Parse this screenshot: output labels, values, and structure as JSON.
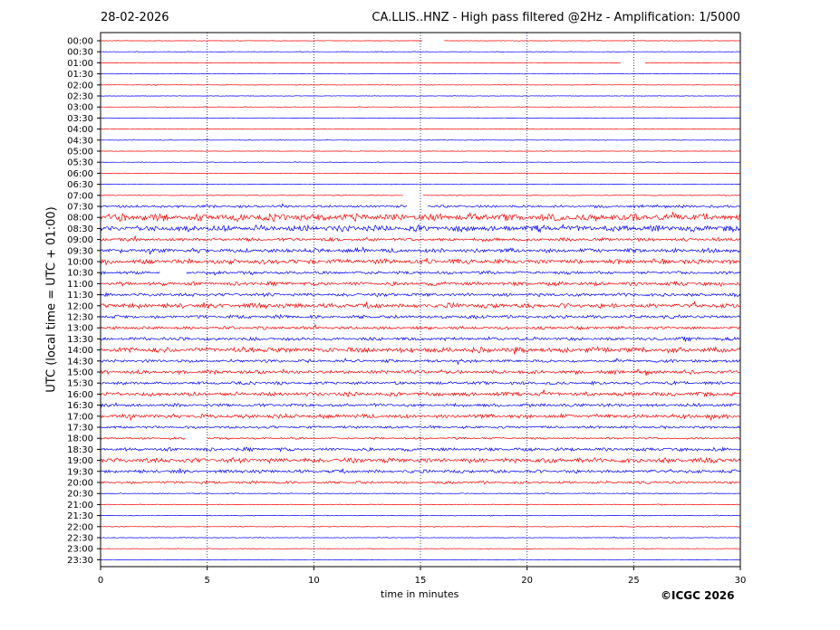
{
  "header": {
    "date": "28-02-2026",
    "title": "CA.LLIS..HNZ - High pass filtered @2Hz - Amplification: 1/5000"
  },
  "footer": {
    "copyright": "©ICGC 2026"
  },
  "chart_data": {
    "type": "line",
    "title": "CA.LLIS..HNZ - High pass filtered @2Hz - Amplification: 1/5000",
    "xlabel": "time in minutes",
    "ylabel": "UTC (local time = UTC + 01:00)",
    "xlim": [
      0,
      30
    ],
    "xticks": [
      0,
      5,
      10,
      15,
      20,
      25,
      30
    ],
    "vertical_gridlines_at": [
      5,
      10,
      15,
      20,
      25
    ],
    "trace_colors": [
      "#ff0000",
      "#0000ff"
    ],
    "rows": [
      {
        "label": "00:00",
        "amp": 0.3,
        "gaps": [
          [
            15.1,
            16.1
          ]
        ]
      },
      {
        "label": "00:30",
        "amp": 0.3,
        "gaps": []
      },
      {
        "label": "01:00",
        "amp": 0.3,
        "gaps": [
          [
            24.4,
            25.5
          ]
        ]
      },
      {
        "label": "01:30",
        "amp": 0.3,
        "gaps": []
      },
      {
        "label": "02:00",
        "amp": 0.3,
        "gaps": []
      },
      {
        "label": "02:30",
        "amp": 0.3,
        "gaps": []
      },
      {
        "label": "03:00",
        "amp": 0.3,
        "gaps": []
      },
      {
        "label": "03:30",
        "amp": 0.3,
        "gaps": []
      },
      {
        "label": "04:00",
        "amp": 0.3,
        "gaps": []
      },
      {
        "label": "04:30",
        "amp": 0.3,
        "gaps": []
      },
      {
        "label": "05:00",
        "amp": 0.3,
        "gaps": []
      },
      {
        "label": "05:30",
        "amp": 0.3,
        "gaps": []
      },
      {
        "label": "06:00",
        "amp": 0.3,
        "gaps": []
      },
      {
        "label": "06:30",
        "amp": 0.3,
        "gaps": []
      },
      {
        "label": "07:00",
        "amp": 0.4,
        "gaps": [
          [
            14.2,
            15.1
          ]
        ]
      },
      {
        "label": "07:30",
        "amp": 1.4,
        "gaps": [
          [
            14.4,
            15.3
          ]
        ]
      },
      {
        "label": "08:00",
        "amp": 3.8,
        "gaps": []
      },
      {
        "label": "08:30",
        "amp": 3.2,
        "gaps": []
      },
      {
        "label": "09:00",
        "amp": 1.8,
        "gaps": []
      },
      {
        "label": "09:30",
        "amp": 2.2,
        "gaps": []
      },
      {
        "label": "10:00",
        "amp": 2.6,
        "gaps": []
      },
      {
        "label": "10:30",
        "amp": 1.6,
        "gaps": [
          [
            2.8,
            4.0
          ]
        ]
      },
      {
        "label": "11:00",
        "amp": 2.0,
        "gaps": []
      },
      {
        "label": "11:30",
        "amp": 1.8,
        "gaps": []
      },
      {
        "label": "12:00",
        "amp": 2.6,
        "gaps": []
      },
      {
        "label": "12:30",
        "amp": 1.8,
        "gaps": []
      },
      {
        "label": "13:00",
        "amp": 1.6,
        "gaps": []
      },
      {
        "label": "13:30",
        "amp": 1.8,
        "gaps": []
      },
      {
        "label": "14:00",
        "amp": 2.8,
        "gaps": []
      },
      {
        "label": "14:30",
        "amp": 1.6,
        "gaps": []
      },
      {
        "label": "15:00",
        "amp": 2.0,
        "gaps": []
      },
      {
        "label": "15:30",
        "amp": 1.6,
        "gaps": []
      },
      {
        "label": "16:00",
        "amp": 2.2,
        "gaps": []
      },
      {
        "label": "16:30",
        "amp": 1.8,
        "gaps": []
      },
      {
        "label": "17:00",
        "amp": 2.2,
        "gaps": []
      },
      {
        "label": "17:30",
        "amp": 1.4,
        "gaps": []
      },
      {
        "label": "18:00",
        "amp": 1.0,
        "gaps": [
          [
            4.0,
            5.0
          ]
        ]
      },
      {
        "label": "18:30",
        "amp": 1.8,
        "gaps": []
      },
      {
        "label": "19:00",
        "amp": 2.6,
        "gaps": []
      },
      {
        "label": "19:30",
        "amp": 1.8,
        "gaps": []
      },
      {
        "label": "20:00",
        "amp": 1.4,
        "gaps": []
      },
      {
        "label": "20:30",
        "amp": 0.5,
        "gaps": []
      },
      {
        "label": "21:00",
        "amp": 0.4,
        "gaps": []
      },
      {
        "label": "21:30",
        "amp": 0.4,
        "gaps": []
      },
      {
        "label": "22:00",
        "amp": 0.4,
        "gaps": []
      },
      {
        "label": "22:30",
        "amp": 0.4,
        "gaps": []
      },
      {
        "label": "23:00",
        "amp": 0.3,
        "gaps": []
      },
      {
        "label": "23:30",
        "amp": 0.3,
        "gaps": []
      }
    ]
  }
}
